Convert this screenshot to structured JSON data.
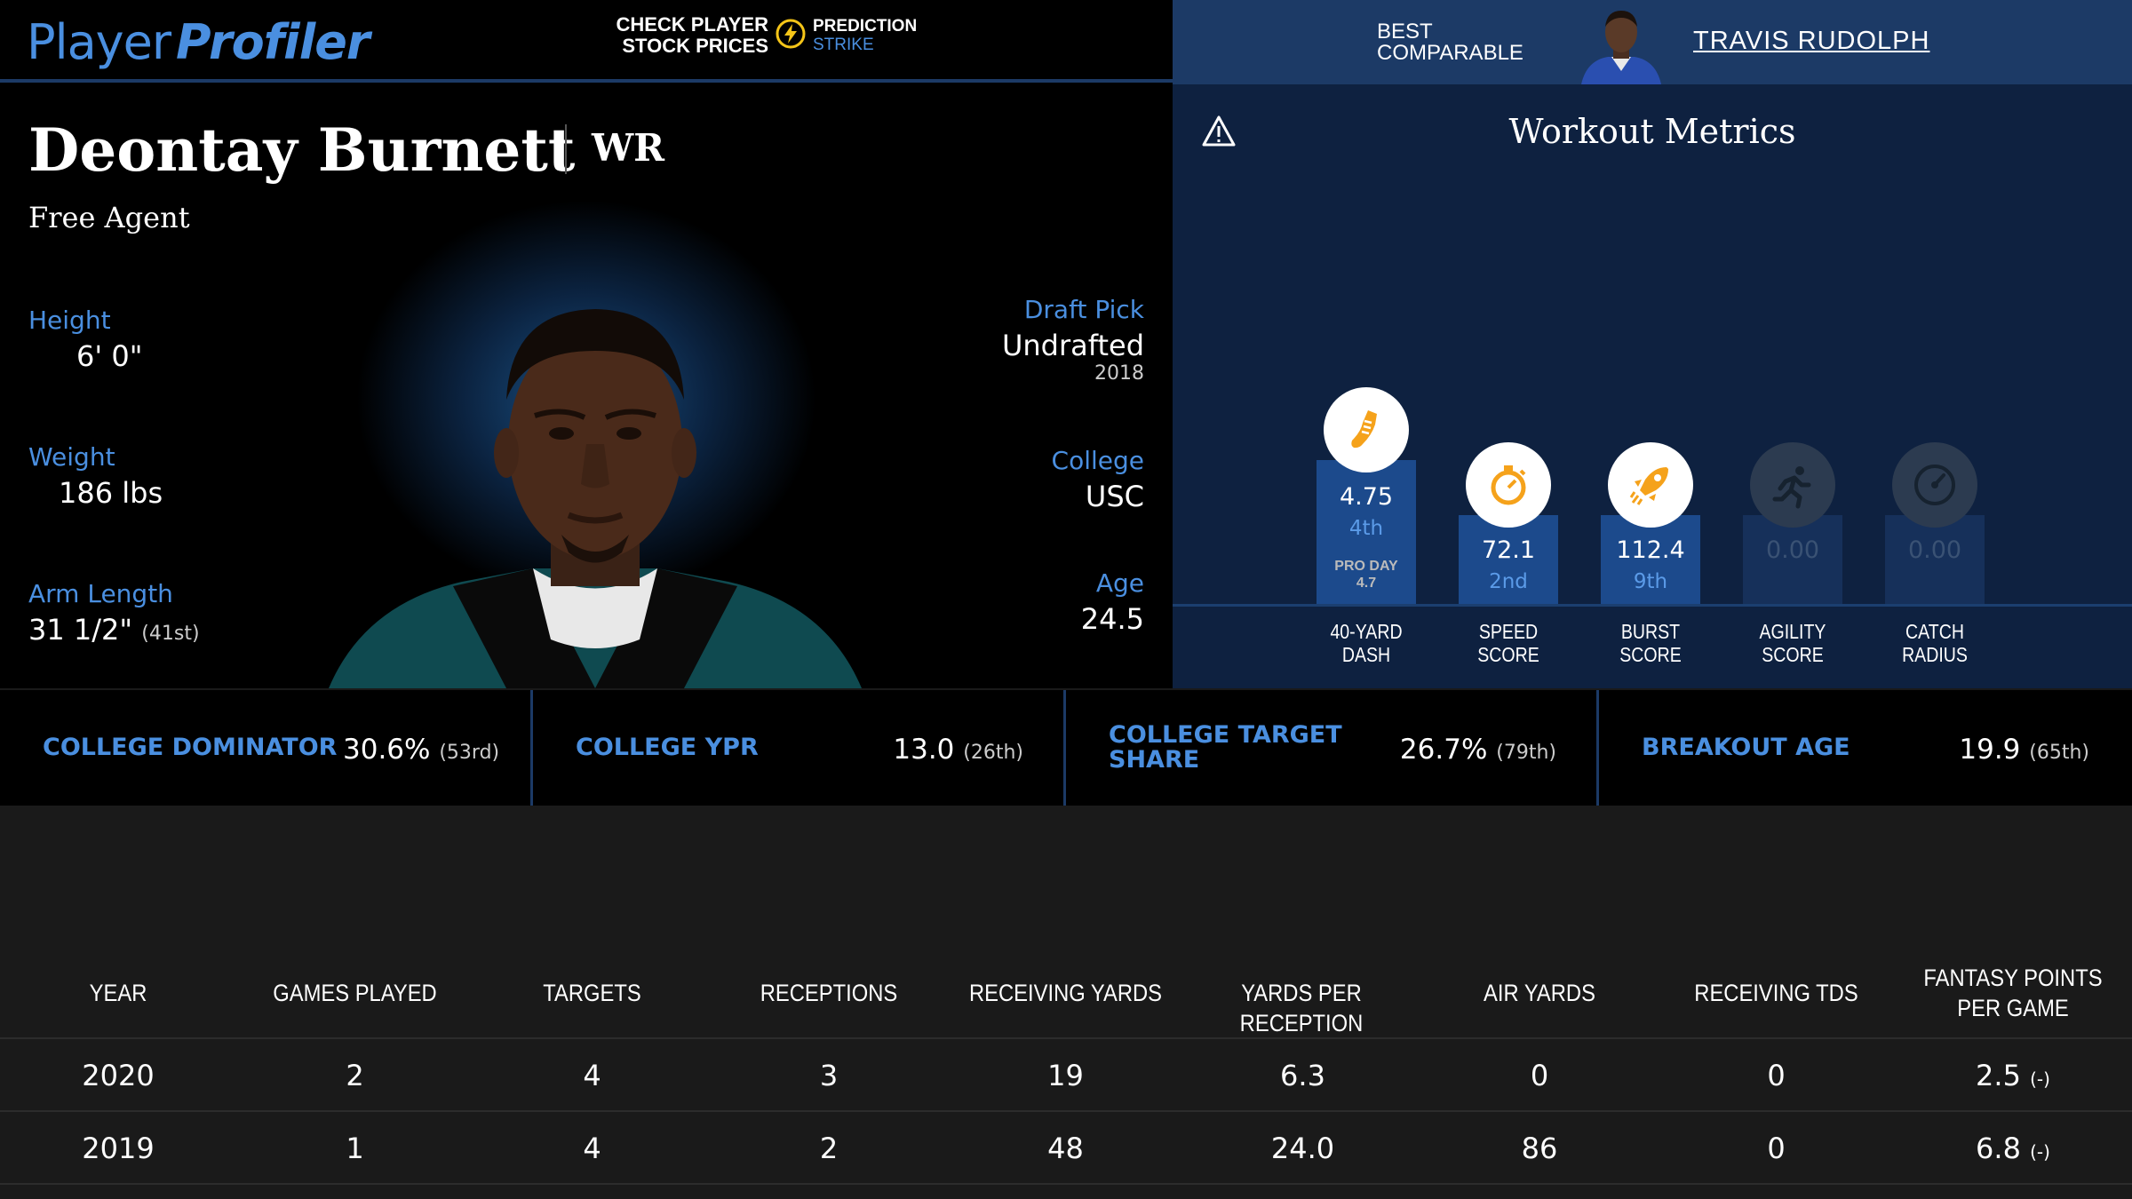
{
  "header": {
    "logo_regular": "Player",
    "logo_bold": "Profiler",
    "check_stock": "CHECK PLAYER\nSTOCK PRICES",
    "partner_name": "PREDICTION",
    "partner_sub": "STRIKE",
    "best_comparable_label": "BEST\nCOMPARABLE",
    "best_comparable_name": "TRAVIS RUDOLPH"
  },
  "player": {
    "name": "Deontay Burnett",
    "position": "WR",
    "team": "Free Agent",
    "height_label": "Height",
    "height": "6' 0\"",
    "weight_label": "Weight",
    "weight": "186 lbs",
    "arm_label": "Arm Length",
    "arm": "31 1/2\"",
    "arm_rank": "(41st)",
    "draft_label": "Draft Pick",
    "draft": "Undrafted",
    "draft_year": "2018",
    "college_label": "College",
    "college": "USC",
    "age_label": "Age",
    "age": "24.5"
  },
  "workout": {
    "title": "Workout Metrics",
    "metrics": [
      {
        "label": "40-YARD\nDASH",
        "value": "4.75",
        "rank": "4th",
        "extra": "PRO DAY\n4.7",
        "icon": "running-shoe-icon",
        "active": true
      },
      {
        "label": "SPEED\nSCORE",
        "value": "72.1",
        "rank": "2nd",
        "icon": "stopwatch-icon",
        "active": true
      },
      {
        "label": "BURST\nSCORE",
        "value": "112.4",
        "rank": "9th",
        "icon": "rocket-icon",
        "active": true
      },
      {
        "label": "AGILITY\nSCORE",
        "value": "0.00",
        "rank": "",
        "icon": "runner-icon",
        "active": false
      },
      {
        "label": "CATCH\nRADIUS",
        "value": "0.00",
        "rank": "",
        "icon": "gauge-icon",
        "active": false
      }
    ]
  },
  "college_stats": [
    {
      "label": "COLLEGE DOMINATOR",
      "value": "30.6%",
      "rank": "(53rd)"
    },
    {
      "label": "COLLEGE YPR",
      "value": "13.0",
      "rank": "(26th)"
    },
    {
      "label": "COLLEGE TARGET\nSHARE",
      "value": "26.7%",
      "rank": "(79th)"
    },
    {
      "label": "BREAKOUT AGE",
      "value": "19.9",
      "rank": "(65th)"
    }
  ],
  "table": {
    "headers": [
      "YEAR",
      "GAMES PLAYED",
      "TARGETS",
      "RECEPTIONS",
      "RECEIVING YARDS",
      "YARDS PER RECEPTION",
      "AIR YARDS",
      "RECEIVING TDS",
      "FANTASY POINTS PER GAME"
    ],
    "rows": [
      {
        "cells": [
          "2020",
          "2",
          "4",
          "3",
          "19",
          "6.3",
          "0",
          "0",
          "2.5"
        ],
        "fp_note": "(-)"
      },
      {
        "cells": [
          "2019",
          "1",
          "4",
          "2",
          "48",
          "24.0",
          "86",
          "0",
          "6.8"
        ],
        "fp_note": "(-)"
      }
    ]
  },
  "colors": {
    "accent_blue": "#4a8fe0",
    "header_navy": "#1c3a66",
    "bar_blue": "#1c4a8c",
    "icon_orange": "#f5a21b"
  }
}
